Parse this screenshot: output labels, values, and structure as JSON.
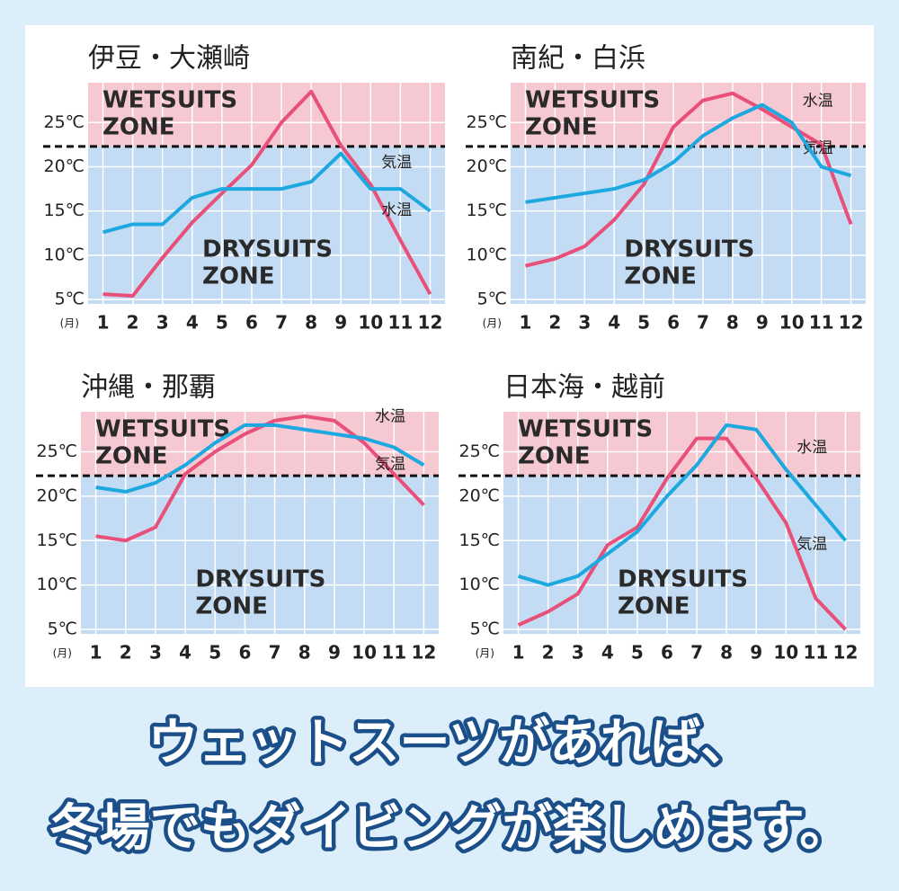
{
  "chart_data": [
    {
      "type": "line",
      "title": "伊豆・大瀬崎",
      "x_unit": "(月)",
      "categories": [
        "1",
        "2",
        "3",
        "4",
        "5",
        "6",
        "7",
        "8",
        "9",
        "10",
        "11",
        "12"
      ],
      "series": [
        {
          "name": "気温",
          "color": "#e8507a",
          "values": [
            5.6,
            5.4,
            9.7,
            13.7,
            17,
            20.2,
            25,
            28.5,
            22.4,
            18,
            11.7,
            5.6
          ]
        },
        {
          "name": "水温",
          "color": "#1ea8e0",
          "values": [
            12.6,
            13.5,
            13.5,
            16.5,
            17.5,
            17.5,
            17.5,
            18.3,
            21.5,
            17.5,
            17.5,
            15
          ]
        }
      ],
      "ylim": [
        4.5,
        29.5
      ],
      "yticks": [
        {
          "value": 5,
          "label": "5℃"
        },
        {
          "value": 10,
          "label": "10℃"
        },
        {
          "value": 15,
          "label": "15℃"
        },
        {
          "value": 20,
          "label": "20℃"
        },
        {
          "value": 25,
          "label": "25℃"
        }
      ],
      "threshold": 22.3,
      "upper_zone_label": [
        "WETSUITS",
        "ZONE"
      ],
      "lower_zone_label": [
        "DRYSUITS",
        "ZONE"
      ],
      "grid": true
    },
    {
      "type": "line",
      "title": "南紀・白浜",
      "x_unit": "(月)",
      "categories": [
        "1",
        "2",
        "3",
        "4",
        "5",
        "6",
        "7",
        "8",
        "9",
        "10",
        "11",
        "12"
      ],
      "series": [
        {
          "name": "気温",
          "color": "#e8507a",
          "values": [
            8.8,
            9.6,
            11,
            14,
            18,
            24.5,
            27.5,
            28.3,
            26.5,
            24.5,
            22.5,
            13.5
          ]
        },
        {
          "name": "水温",
          "color": "#1ea8e0",
          "values": [
            16,
            16.5,
            17,
            17.5,
            18.5,
            20.5,
            23.5,
            25.5,
            27,
            25,
            20,
            19
          ]
        }
      ],
      "ylim": [
        4.5,
        29.5
      ],
      "yticks": [
        {
          "value": 5,
          "label": "5℃"
        },
        {
          "value": 10,
          "label": "10℃"
        },
        {
          "value": 15,
          "label": "15℃"
        },
        {
          "value": 20,
          "label": "20℃"
        },
        {
          "value": 25,
          "label": "25℃"
        }
      ],
      "threshold": 22.3,
      "upper_zone_label": [
        "WETSUITS",
        "ZONE"
      ],
      "lower_zone_label": [
        "DRYSUITS",
        "ZONE"
      ],
      "grid": true
    },
    {
      "type": "line",
      "title": "沖縄・那覇",
      "x_unit": "(月)",
      "categories": [
        "1",
        "2",
        "3",
        "4",
        "5",
        "6",
        "7",
        "8",
        "9",
        "10",
        "11",
        "12"
      ],
      "series": [
        {
          "name": "気温",
          "color": "#e8507a",
          "values": [
            15.5,
            15,
            16.5,
            22.5,
            25,
            27,
            28.5,
            29,
            28.5,
            26,
            22.5,
            19
          ]
        },
        {
          "name": "水温",
          "color": "#1ea8e0",
          "values": [
            21,
            20.5,
            21.5,
            23.5,
            26,
            28,
            28,
            27.5,
            27,
            26.5,
            25.5,
            23.5
          ]
        }
      ],
      "ylim": [
        4.5,
        29.5
      ],
      "yticks": [
        {
          "value": 5,
          "label": "5℃"
        },
        {
          "value": 10,
          "label": "10℃"
        },
        {
          "value": 15,
          "label": "15℃"
        },
        {
          "value": 20,
          "label": "20℃"
        },
        {
          "value": 25,
          "label": "25℃"
        }
      ],
      "threshold": 22.3,
      "upper_zone_label": [
        "WETSUITS",
        "ZONE"
      ],
      "lower_zone_label": [
        "DRYSUITS",
        "ZONE"
      ],
      "grid": true
    },
    {
      "type": "line",
      "title": "日本海・越前",
      "x_unit": "(月)",
      "categories": [
        "1",
        "2",
        "3",
        "4",
        "5",
        "6",
        "7",
        "8",
        "9",
        "10",
        "11",
        "12"
      ],
      "series": [
        {
          "name": "気温",
          "color": "#e8507a",
          "values": [
            5.5,
            7,
            9,
            14.5,
            16.5,
            22,
            26.5,
            26.5,
            22,
            17,
            8.5,
            5
          ]
        },
        {
          "name": "水温",
          "color": "#1ea8e0",
          "values": [
            11,
            10,
            11,
            13.5,
            16,
            20,
            23.5,
            28,
            27.5,
            23,
            19,
            15
          ]
        }
      ],
      "ylim": [
        4.5,
        29.5
      ],
      "yticks": [
        {
          "value": 5,
          "label": "5℃"
        },
        {
          "value": 10,
          "label": "10℃"
        },
        {
          "value": 15,
          "label": "15℃"
        },
        {
          "value": 20,
          "label": "20℃"
        },
        {
          "value": 25,
          "label": "25℃"
        }
      ],
      "threshold": 22.3,
      "upper_zone_label": [
        "WETSUITS",
        "ZONE"
      ],
      "lower_zone_label": [
        "DRYSUITS",
        "ZONE"
      ],
      "grid": true
    }
  ],
  "caption": [
    "ウェットスーツがあれば、",
    "冬場でもダイビングが楽しめます。"
  ]
}
